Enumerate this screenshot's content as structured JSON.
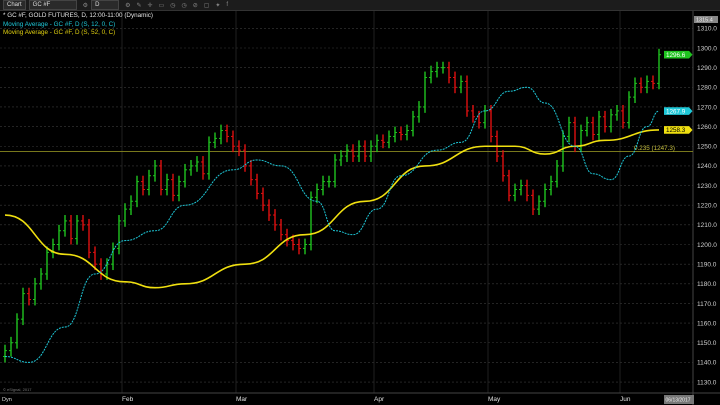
{
  "toolbar": {
    "chart_label": "Chart",
    "symbol": "GC #F",
    "interval": "D",
    "icons": [
      "settings-icon",
      "settings-icon",
      "draw-icon",
      "crosshair-icon",
      "comment-icon",
      "clock-icon",
      "clock-icon",
      "link-icon",
      "window-icon",
      "twitter-icon",
      "facebook-icon"
    ]
  },
  "legend": {
    "title": "* GC #F, GOLD FUTURES, D, 12:00-11:00 (Dynamic)",
    "ma12": "Moving Average - GC #F, D (S, 12, 0, C)",
    "ma52": "Moving Average - GC #F, D (S, 52, 0, C)"
  },
  "footer": {
    "copyright": "© eSignal, 2017",
    "dyn": "Dyn",
    "date_badge": "06/13/2017"
  },
  "colors": {
    "up": "#1fc41f",
    "down": "#e01010",
    "ma12": "#1ec8d8",
    "ma52": "#f0e010",
    "fib": "#8a8a20",
    "grid": "#3a3a3a"
  },
  "chart_data": {
    "type": "ohlc-bar",
    "ylim": [
      1125,
      1318
    ],
    "y_ticks": [
      1310,
      1300,
      1290,
      1280,
      1270,
      1260,
      1250,
      1240,
      1230,
      1220,
      1210,
      1200,
      1190,
      1180,
      1170,
      1160,
      1150,
      1140,
      1130
    ],
    "top_price_label": "1315.4",
    "months": [
      {
        "label": "Feb",
        "index": 20
      },
      {
        "label": "Mar",
        "index": 39
      },
      {
        "label": "Apr",
        "index": 62
      },
      {
        "label": "May",
        "index": 81
      },
      {
        "label": "Jun",
        "index": 103
      }
    ],
    "close": [
      1146,
      1150,
      1162,
      1175,
      1172,
      1180,
      1185,
      1196,
      1200,
      1207,
      1212,
      1203,
      1212,
      1210,
      1196,
      1190,
      1185,
      1190,
      1198,
      1212,
      1218,
      1222,
      1232,
      1228,
      1235,
      1240,
      1228,
      1233,
      1225,
      1232,
      1238,
      1240,
      1242,
      1236,
      1252,
      1254,
      1258,
      1255,
      1250,
      1248,
      1240,
      1233,
      1226,
      1220,
      1215,
      1210,
      1205,
      1202,
      1200,
      1198,
      1200,
      1224,
      1228,
      1232,
      1232,
      1243,
      1245,
      1248,
      1245,
      1250,
      1245,
      1250,
      1253,
      1252,
      1255,
      1257,
      1256,
      1258,
      1265,
      1270,
      1285,
      1288,
      1290,
      1290,
      1285,
      1280,
      1283,
      1268,
      1265,
      1262,
      1268,
      1255,
      1245,
      1235,
      1225,
      1228,
      1230,
      1225,
      1218,
      1222,
      1228,
      1232,
      1240,
      1255,
      1262,
      1250,
      1258,
      1262,
      1256,
      1265,
      1260,
      1266,
      1268,
      1262,
      1275,
      1282,
      1280,
      1283,
      1282,
      1296.6
    ],
    "ma12": [
      [
        0,
        1143
      ],
      [
        4,
        1140
      ],
      [
        10,
        1158
      ],
      [
        15,
        1185
      ],
      [
        20,
        1202
      ],
      [
        25,
        1207
      ],
      [
        30,
        1220
      ],
      [
        38,
        1238
      ],
      [
        42,
        1243
      ],
      [
        46,
        1240
      ],
      [
        52,
        1222
      ],
      [
        55,
        1207
      ],
      [
        58,
        1205
      ],
      [
        62,
        1218
      ],
      [
        66,
        1235
      ],
      [
        72,
        1248
      ],
      [
        76,
        1252
      ],
      [
        80,
        1268
      ],
      [
        84,
        1278
      ],
      [
        87,
        1280
      ],
      [
        90,
        1272
      ],
      [
        95,
        1250
      ],
      [
        98,
        1236
      ],
      [
        101,
        1233
      ],
      [
        104,
        1245
      ],
      [
        107,
        1260
      ],
      [
        109,
        1267.9
      ]
    ],
    "ma52": [
      [
        0,
        1215
      ],
      [
        10,
        1195
      ],
      [
        20,
        1181
      ],
      [
        25,
        1178
      ],
      [
        30,
        1180
      ],
      [
        40,
        1190
      ],
      [
        50,
        1205
      ],
      [
        60,
        1222
      ],
      [
        70,
        1240
      ],
      [
        80,
        1250
      ],
      [
        85,
        1250
      ],
      [
        90,
        1246
      ],
      [
        95,
        1250
      ],
      [
        100,
        1253
      ],
      [
        109,
        1258.3
      ]
    ],
    "last_labels": {
      "price": "1296.6",
      "ma12": "1267.9",
      "ma52": "1258.3"
    },
    "fib": {
      "value": 1247.3,
      "label": "0.235 (1247.3)"
    }
  }
}
